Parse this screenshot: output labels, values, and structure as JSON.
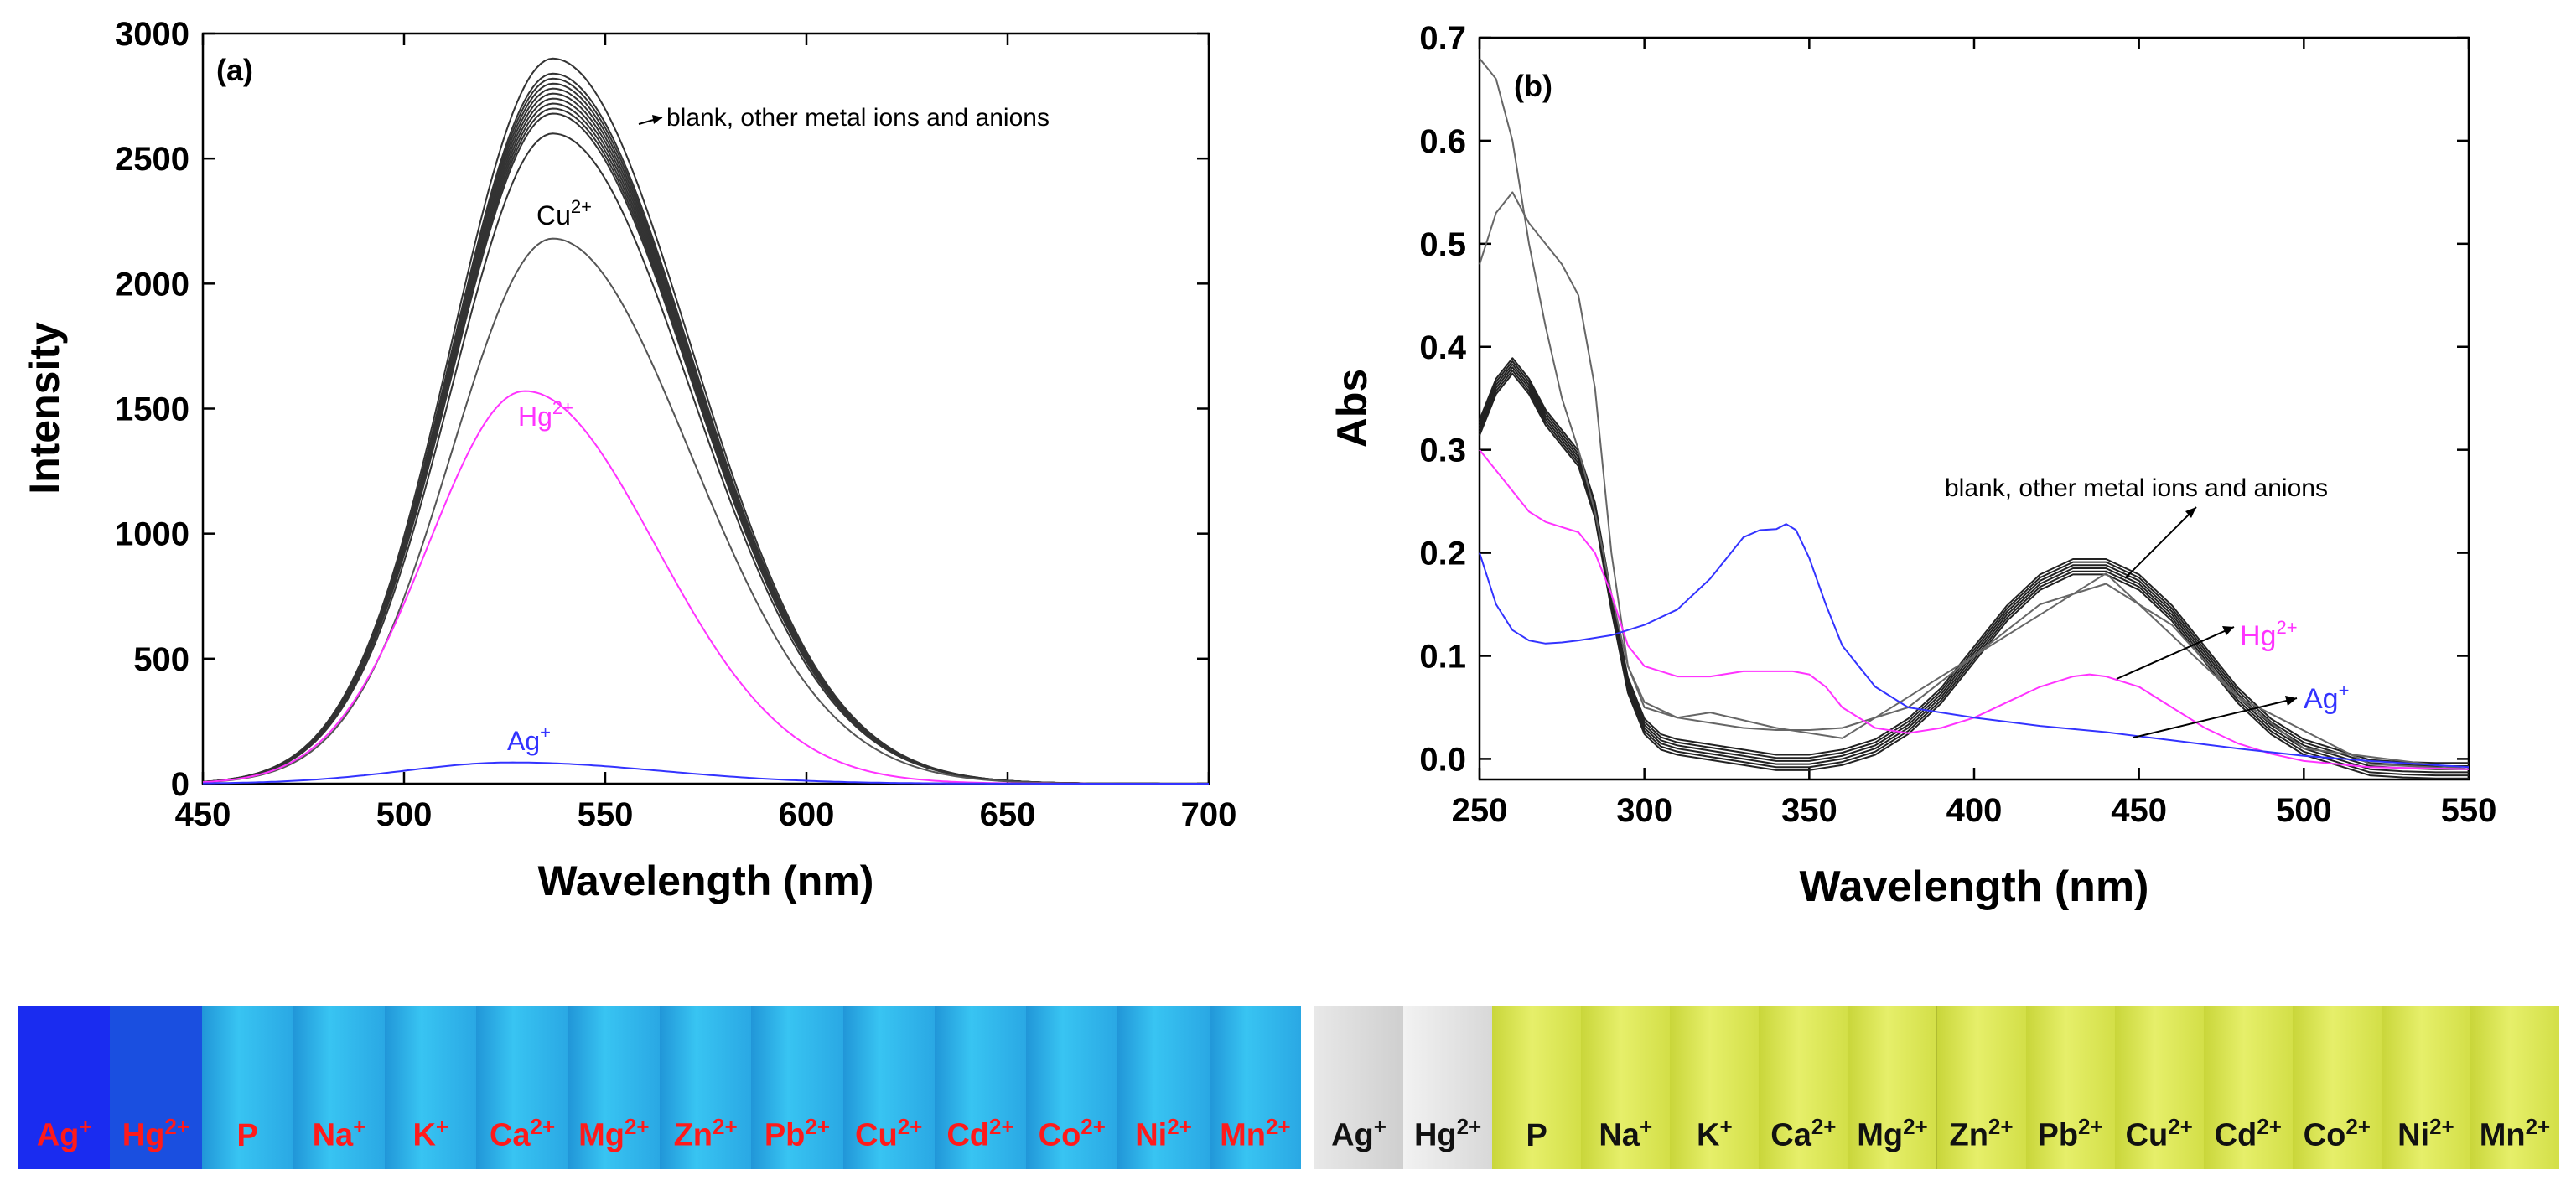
{
  "chart_data": [
    {
      "type": "line",
      "panel_label": "(a)",
      "xlabel": "Wavelength (nm)",
      "ylabel": "Intensity",
      "xlim": [
        450,
        700
      ],
      "ylim": [
        0,
        3000
      ],
      "xticks": [
        450,
        500,
        550,
        600,
        650,
        700
      ],
      "yticks": [
        0,
        500,
        1000,
        1500,
        2000,
        2500,
        3000
      ],
      "series": [
        {
          "name": "blank-1",
          "color": "#333333",
          "peak_x": 537,
          "peak_y": 2900,
          "width": 42
        },
        {
          "name": "blank-2",
          "color": "#333333",
          "peak_x": 537,
          "peak_y": 2840,
          "width": 42
        },
        {
          "name": "blank-3",
          "color": "#333333",
          "peak_x": 537,
          "peak_y": 2820,
          "width": 42
        },
        {
          "name": "blank-4",
          "color": "#333333",
          "peak_x": 537,
          "peak_y": 2800,
          "width": 42
        },
        {
          "name": "blank-5",
          "color": "#333333",
          "peak_x": 537,
          "peak_y": 2780,
          "width": 42
        },
        {
          "name": "blank-6",
          "color": "#333333",
          "peak_x": 537,
          "peak_y": 2760,
          "width": 42
        },
        {
          "name": "blank-7",
          "color": "#333333",
          "peak_x": 537,
          "peak_y": 2740,
          "width": 42
        },
        {
          "name": "blank-8",
          "color": "#333333",
          "peak_x": 537,
          "peak_y": 2720,
          "width": 42
        },
        {
          "name": "blank-9",
          "color": "#333333",
          "peak_x": 537,
          "peak_y": 2700,
          "width": 42
        },
        {
          "name": "blank-10",
          "color": "#333333",
          "peak_x": 537,
          "peak_y": 2680,
          "width": 42
        },
        {
          "name": "blank-11",
          "color": "#333333",
          "peak_x": 537,
          "peak_y": 2600,
          "width": 42
        },
        {
          "name": "Cu2+",
          "color": "#555555",
          "peak_x": 537,
          "peak_y": 2180,
          "width": 42
        },
        {
          "name": "Hg2+",
          "color": "#ff33ff",
          "peak_x": 530,
          "peak_y": 1570,
          "width": 40
        },
        {
          "name": "Ag+",
          "color": "#3333ff",
          "peak_x": 527,
          "peak_y": 85,
          "width": 45
        }
      ],
      "annotations": {
        "blank": "blank, other metal ions and anions",
        "cu_base": "Cu",
        "cu_sup": "2+",
        "hg_base": "Hg",
        "hg_sup": "2+",
        "ag_base": "Ag",
        "ag_sup": "+"
      }
    },
    {
      "type": "line",
      "panel_label": "(b)",
      "xlabel": "Wavelength (nm)",
      "ylabel": "Abs",
      "xlim": [
        250,
        550
      ],
      "ylim": [
        -0.02,
        0.7
      ],
      "xticks": [
        250,
        300,
        350,
        400,
        450,
        500,
        550
      ],
      "yticks": [
        0.0,
        0.1,
        0.2,
        0.3,
        0.4,
        0.5,
        0.6,
        0.7
      ],
      "series": [
        {
          "name": "blank-group",
          "color": "#222222",
          "x": [
            250,
            255,
            260,
            265,
            270,
            275,
            280,
            285,
            290,
            295,
            300,
            305,
            310,
            320,
            330,
            340,
            350,
            360,
            370,
            380,
            390,
            400,
            410,
            420,
            430,
            440,
            450,
            460,
            470,
            480,
            490,
            500,
            510,
            520,
            530,
            540,
            550
          ],
          "y": [
            0.32,
            0.36,
            0.38,
            0.36,
            0.33,
            0.31,
            0.29,
            0.24,
            0.15,
            0.07,
            0.03,
            0.015,
            0.01,
            0.005,
            0.0,
            -0.005,
            -0.005,
            0.0,
            0.01,
            0.03,
            0.06,
            0.1,
            0.14,
            0.17,
            0.185,
            0.185,
            0.17,
            0.14,
            0.1,
            0.06,
            0.03,
            0.01,
            0.0,
            -0.01,
            -0.012,
            -0.013,
            -0.013
          ]
        },
        {
          "name": "other-1",
          "color": "#666666",
          "x": [
            250,
            255,
            260,
            265,
            270,
            275,
            280,
            285,
            290,
            295,
            300,
            310,
            320,
            330,
            340,
            350,
            360,
            380,
            400,
            420,
            440,
            460,
            480,
            500,
            550
          ],
          "y": [
            0.68,
            0.66,
            0.6,
            0.5,
            0.42,
            0.35,
            0.3,
            0.24,
            0.16,
            0.09,
            0.055,
            0.04,
            0.035,
            0.03,
            0.028,
            0.028,
            0.03,
            0.05,
            0.1,
            0.15,
            0.17,
            0.13,
            0.06,
            0.01,
            -0.01
          ]
        },
        {
          "name": "other-2",
          "color": "#666666",
          "x": [
            250,
            255,
            260,
            265,
            270,
            275,
            280,
            285,
            290,
            295,
            300,
            310,
            320,
            340,
            360,
            400,
            440,
            480,
            520,
            550
          ],
          "y": [
            0.48,
            0.53,
            0.55,
            0.52,
            0.5,
            0.48,
            0.45,
            0.36,
            0.2,
            0.09,
            0.05,
            0.04,
            0.045,
            0.03,
            0.02,
            0.1,
            0.18,
            0.06,
            -0.005,
            -0.01
          ]
        },
        {
          "name": "Hg2+",
          "color": "#ff33ff",
          "x": [
            250,
            255,
            260,
            265,
            270,
            275,
            280,
            285,
            290,
            295,
            300,
            310,
            320,
            330,
            340,
            345,
            350,
            355,
            360,
            370,
            380,
            390,
            400,
            410,
            420,
            430,
            435,
            440,
            450,
            460,
            470,
            480,
            490,
            500,
            520,
            550
          ],
          "y": [
            0.3,
            0.28,
            0.26,
            0.24,
            0.23,
            0.225,
            0.22,
            0.2,
            0.16,
            0.11,
            0.09,
            0.08,
            0.08,
            0.085,
            0.085,
            0.085,
            0.082,
            0.07,
            0.05,
            0.03,
            0.025,
            0.03,
            0.04,
            0.055,
            0.07,
            0.08,
            0.082,
            0.08,
            0.07,
            0.05,
            0.03,
            0.015,
            0.005,
            -0.002,
            -0.008,
            -0.01
          ]
        },
        {
          "name": "Ag+",
          "color": "#3333ff",
          "x": [
            250,
            255,
            260,
            265,
            270,
            275,
            280,
            290,
            300,
            310,
            320,
            330,
            335,
            340,
            343,
            346,
            350,
            355,
            360,
            370,
            380,
            400,
            420,
            440,
            460,
            480,
            500,
            520,
            550
          ],
          "y": [
            0.2,
            0.15,
            0.125,
            0.115,
            0.112,
            0.113,
            0.115,
            0.12,
            0.13,
            0.145,
            0.175,
            0.215,
            0.222,
            0.223,
            0.228,
            0.222,
            0.195,
            0.15,
            0.11,
            0.07,
            0.05,
            0.04,
            0.032,
            0.026,
            0.018,
            0.01,
            0.003,
            -0.002,
            -0.008
          ]
        }
      ],
      "annotations": {
        "blank": "blank, other metal ions and anions",
        "hg_base": "Hg",
        "hg_sup": "2+",
        "ag_base": "Ag",
        "ag_sup": "+"
      }
    }
  ],
  "photos": {
    "left": {
      "background": "#22b0e8",
      "labels": [
        {
          "base": "Ag",
          "sup": "+"
        },
        {
          "base": "Hg",
          "sup": "2+"
        },
        {
          "base": "P",
          "sup": ""
        },
        {
          "base": "Na",
          "sup": "+"
        },
        {
          "base": "K",
          "sup": "+"
        },
        {
          "base": "Ca",
          "sup": "2+"
        },
        {
          "base": "Mg",
          "sup": "2+"
        },
        {
          "base": "Zn",
          "sup": "2+"
        },
        {
          "base": "Pb",
          "sup": "2+"
        },
        {
          "base": "Cu",
          "sup": "2+"
        },
        {
          "base": "Cd",
          "sup": "2+"
        },
        {
          "base": "Co",
          "sup": "2+"
        },
        {
          "base": "Ni",
          "sup": "2+"
        },
        {
          "base": "Mn",
          "sup": "2+"
        }
      ],
      "label_color": "#ff1a1a"
    },
    "right": {
      "background": "#d9e64a",
      "labels": [
        {
          "base": "Ag",
          "sup": "+"
        },
        {
          "base": "Hg",
          "sup": "2+"
        },
        {
          "base": "P",
          "sup": ""
        },
        {
          "base": "Na",
          "sup": "+"
        },
        {
          "base": "K",
          "sup": "+"
        },
        {
          "base": "Ca",
          "sup": "2+"
        },
        {
          "base": "Mg",
          "sup": "2+"
        },
        {
          "base": "Zn",
          "sup": "2+"
        },
        {
          "base": "Pb",
          "sup": "2+"
        },
        {
          "base": "Cu",
          "sup": "2+"
        },
        {
          "base": "Cd",
          "sup": "2+"
        },
        {
          "base": "Co",
          "sup": "2+"
        },
        {
          "base": "Ni",
          "sup": "2+"
        },
        {
          "base": "Mn",
          "sup": "2+"
        }
      ],
      "label_color": "#111111"
    }
  }
}
